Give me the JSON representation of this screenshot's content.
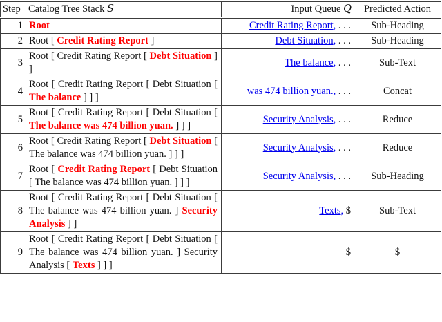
{
  "colors": {
    "highlight_red": "#ff0000",
    "link_blue": "#0000ee",
    "border_gray": "#3c3c3c",
    "text_black": "#141414"
  },
  "header": {
    "step": "Step",
    "stack_label": "Catalog Tree Stack",
    "stack_symbol": "S",
    "queue_label": "Input Queue",
    "queue_symbol": "Q",
    "action": "Predicted Action"
  },
  "rows": [
    {
      "step": "1",
      "stack": [
        {
          "t": "Root",
          "s": "red"
        }
      ],
      "queue": [
        {
          "t": "Credit Rating Report",
          "s": "link"
        },
        {
          "t": ",",
          "s": "blue"
        },
        {
          "t": " . . .",
          "s": "plain"
        }
      ],
      "action": "Sub-Heading"
    },
    {
      "step": "2",
      "stack": [
        {
          "t": "Root [ ",
          "s": "plain"
        },
        {
          "t": "Credit Rating Report",
          "s": "red"
        },
        {
          "t": " ]",
          "s": "plain"
        }
      ],
      "queue": [
        {
          "t": "Debt Situation",
          "s": "link"
        },
        {
          "t": ",",
          "s": "blue"
        },
        {
          "t": " . . .",
          "s": "plain"
        }
      ],
      "action": "Sub-Heading"
    },
    {
      "step": "3",
      "stack": [
        {
          "t": "Root [ Credit Rating Report [ ",
          "s": "plain"
        },
        {
          "t": "Debt Situation",
          "s": "red"
        },
        {
          "t": " ] ]",
          "s": "plain"
        }
      ],
      "queue": [
        {
          "t": "The balance",
          "s": "link"
        },
        {
          "t": ",",
          "s": "blue"
        },
        {
          "t": " . . .",
          "s": "plain"
        }
      ],
      "action": "Sub-Text"
    },
    {
      "step": "4",
      "stack": [
        {
          "t": "Root [ Credit Rating Report [ Debt Sit­uation [ ",
          "s": "plain"
        },
        {
          "t": "The balance",
          "s": "red"
        },
        {
          "t": " ] ] ]",
          "s": "plain"
        }
      ],
      "queue": [
        {
          "t": "was 474 billion yuan.",
          "s": "link"
        },
        {
          "t": ",",
          "s": "blue"
        },
        {
          "t": " . . .",
          "s": "plain"
        }
      ],
      "action": "Concat"
    },
    {
      "step": "5",
      "stack": [
        {
          "t": "Root [ Credit Rating Report [ Debt Sit­uation [ ",
          "s": "plain"
        },
        {
          "t": "The balance was 474 bil­lion yuan.",
          "s": "red"
        },
        {
          "t": " ] ] ]",
          "s": "plain"
        }
      ],
      "queue": [
        {
          "t": "Security Analysis",
          "s": "link"
        },
        {
          "t": ",",
          "s": "blue"
        },
        {
          "t": " . . .",
          "s": "plain"
        }
      ],
      "action": "Reduce"
    },
    {
      "step": "6",
      "stack": [
        {
          "t": "Root [ Credit Rating Report [ ",
          "s": "plain"
        },
        {
          "t": "Debt Situation",
          "s": "red"
        },
        {
          "t": " [ The balance was 474 bil­lion yuan. ] ] ]",
          "s": "plain"
        }
      ],
      "queue": [
        {
          "t": "Security Analysis",
          "s": "link"
        },
        {
          "t": ",",
          "s": "blue"
        },
        {
          "t": " . . .",
          "s": "plain"
        }
      ],
      "action": "Reduce"
    },
    {
      "step": "7",
      "stack": [
        {
          "t": "Root [ ",
          "s": "plain"
        },
        {
          "t": "Credit Rating Report",
          "s": "red"
        },
        {
          "t": " [ Debt Situation [ The balance was 474 billion yuan. ] ] ]",
          "s": "plain"
        }
      ],
      "queue": [
        {
          "t": "Security Analysis",
          "s": "link"
        },
        {
          "t": ",",
          "s": "blue"
        },
        {
          "t": " . . .",
          "s": "plain"
        }
      ],
      "action": "Sub-Heading"
    },
    {
      "step": "8",
      "stack": [
        {
          "t": "Root [ Credit Rating Report [ Debt Sit­uation [ The balance was 474 billion yuan. ] ",
          "s": "plain"
        },
        {
          "t": "Security Analysis",
          "s": "red"
        },
        {
          "t": " ] ]",
          "s": "plain"
        }
      ],
      "queue": [
        {
          "t": "Texts",
          "s": "link"
        },
        {
          "t": ",",
          "s": "blue"
        },
        {
          "t": " $",
          "s": "plain"
        }
      ],
      "action": "Sub-Text"
    },
    {
      "step": "9",
      "stack": [
        {
          "t": "Root [ Credit Rating Report [ Debt Sit­uation [ The balance was 474 billion yuan. ] Security Analysis [ ",
          "s": "plain"
        },
        {
          "t": "Texts",
          "s": "red"
        },
        {
          "t": " ] ] ]",
          "s": "plain"
        }
      ],
      "queue": [
        {
          "t": "$",
          "s": "plain"
        }
      ],
      "action": "$"
    }
  ]
}
